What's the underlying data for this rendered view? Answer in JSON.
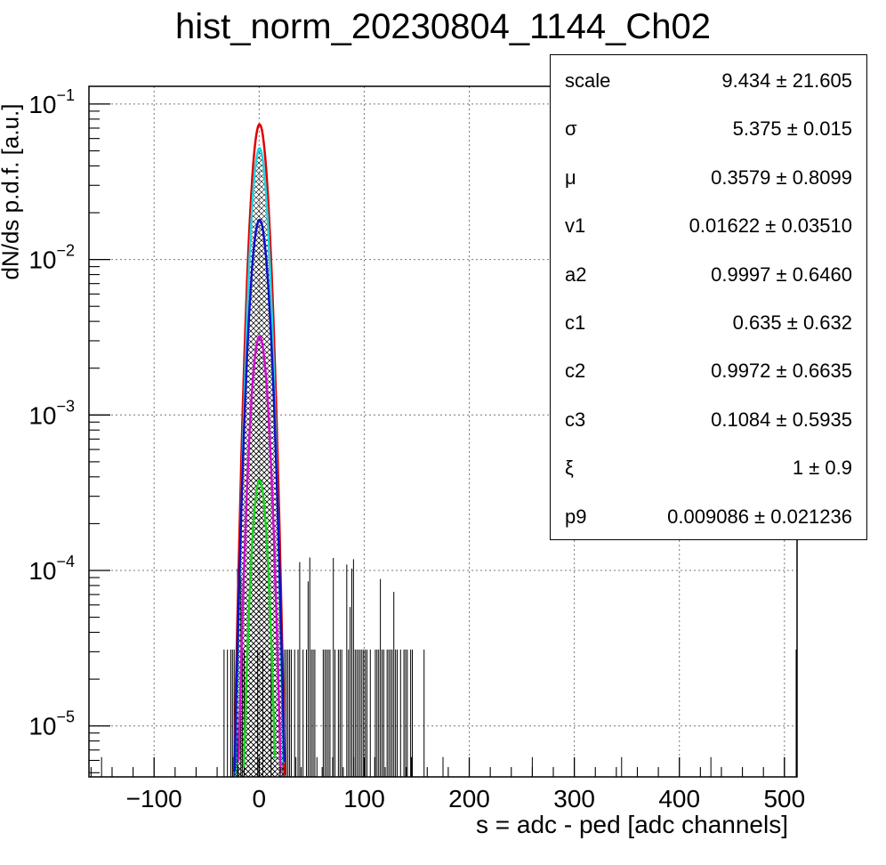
{
  "chart_data": {
    "type": "line",
    "title": "hist_norm_20230804_1144_Ch02",
    "xlabel": "s = adc - ped [adc channels]",
    "ylabel": "dN/ds p.d.f. [a.u.]",
    "xlim": [
      -162,
      512
    ],
    "ylim": [
      4.7e-06,
      0.13
    ],
    "y_scale": "log",
    "grid": true,
    "x_ticks": [
      "−100",
      "0",
      "100",
      "200",
      "300",
      "400",
      "500"
    ],
    "y_ticks": [
      {
        "base": "10",
        "exp": "−1"
      },
      {
        "base": "10",
        "exp": "−2"
      },
      {
        "base": "10",
        "exp": "−3"
      },
      {
        "base": "10",
        "exp": "−4"
      },
      {
        "base": "10",
        "exp": "−5"
      }
    ],
    "series": [
      {
        "color": "#e00000",
        "peak": 0.074,
        "mu": 0.36,
        "sigma": 5.5,
        "fill": "none"
      },
      {
        "color": "#22d3e0",
        "peak": 0.052,
        "mu": 0.36,
        "sigma": 5.3,
        "fill": "hatch"
      },
      {
        "color": "#1010c8",
        "peak": 0.018,
        "mu": 0.36,
        "sigma": 5.9,
        "fill": "hatch"
      },
      {
        "color": "#d010d0",
        "peak": 0.0032,
        "mu": 0.36,
        "sigma": 5.6,
        "fill": "hatch"
      },
      {
        "color": "#20d020",
        "peak": 0.00038,
        "mu": 0.36,
        "sigma": 5.1,
        "fill": "hatch"
      }
    ],
    "stat_box": {
      "rows": [
        {
          "name": "scale",
          "value": "9.434 ± 21.605"
        },
        {
          "name": "σ",
          "value": "5.375 ± 0.015"
        },
        {
          "name": "μ",
          "value": "0.3579 ± 0.8099"
        },
        {
          "name": "v1",
          "value": "0.01622 ± 0.03510"
        },
        {
          "name": "a2",
          "value": "0.9997 ± 0.6460"
        },
        {
          "name": "c1",
          "value": "0.635 ± 0.632"
        },
        {
          "name": "c2",
          "value": "0.9972 ± 0.6635"
        },
        {
          "name": "c3",
          "value": "0.1084 ± 0.5935"
        },
        {
          "name": "ξ",
          "value": "1 ± 0.9"
        },
        {
          "name": "p9",
          "value": "0.009086 ± 0.021236"
        }
      ]
    }
  }
}
